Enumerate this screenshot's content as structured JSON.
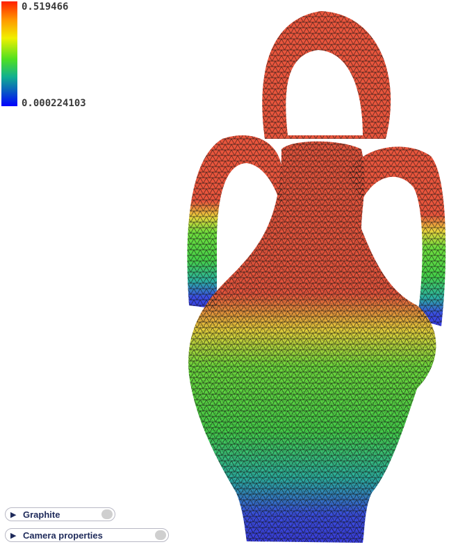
{
  "colorbar": {
    "max_label": "0.519466",
    "min_label": "0.000224103",
    "colors": [
      "#ff2000",
      "#ff9a00",
      "#f0f000",
      "#50e020",
      "#10b090",
      "#0a60c0",
      "#0000ff"
    ]
  },
  "scene": {
    "object": "amphora-mesh",
    "colors": {
      "top": "#e8553c",
      "upper_mid": "#e8d23c",
      "mid": "#4fd43a",
      "lower": "#2bb0a0",
      "bottom": "#3a3ee0"
    }
  },
  "panels": {
    "graphite": {
      "label": "Graphite",
      "icon": "triangle-right-icon"
    },
    "camera": {
      "label": "Camera properties",
      "icon": "triangle-right-icon"
    }
  }
}
